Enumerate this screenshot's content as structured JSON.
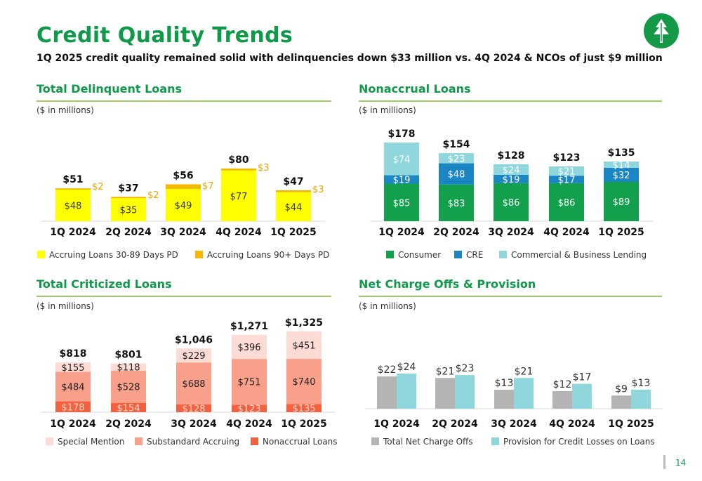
{
  "header": {
    "title": "Credit Quality Trends",
    "subtitle": "1Q 2025 credit quality remained solid with delinquencies down $33 million vs. 4Q 2024 & NCOs of just $9 million",
    "page_number": "14",
    "logo_icon": "tree-logo-icon"
  },
  "panels": {
    "delinquent": {
      "title": "Total Delinquent Loans",
      "units": "($ in millions)"
    },
    "nonaccrual": {
      "title": "Nonaccrual Loans",
      "units": "($ in millions)"
    },
    "criticized": {
      "title": "Total Criticized Loans",
      "units": "($ in millions)"
    },
    "nco": {
      "title": "Net Charge Offs & Provision",
      "units": "($ in millions)"
    }
  },
  "chart_data": [
    {
      "id": "delinquent",
      "type": "bar",
      "stacked": true,
      "categories": [
        "1Q 2024",
        "2Q 2024",
        "3Q 2024",
        "4Q 2024",
        "1Q 2025"
      ],
      "totals": [
        "$51",
        "$37",
        "$56",
        "$80",
        "$47"
      ],
      "ylim": [
        0,
        80
      ],
      "series": [
        {
          "name": "Accruing Loans 30-89 Days PD",
          "values": [
            48,
            35,
            49,
            77,
            44
          ],
          "labels": [
            "$48",
            "$35",
            "$49",
            "$77",
            "$44"
          ],
          "color": "#ffff00",
          "label_color": "#333333",
          "label_pos": "inside"
        },
        {
          "name": "Accruing Loans 90+ Days PD",
          "values": [
            2,
            2,
            7,
            3,
            3
          ],
          "labels": [
            "$2",
            "$2",
            "$7",
            "$3",
            "$3"
          ],
          "color": "#f5b800",
          "label_color": "#e6a700",
          "label_pos": "right"
        }
      ]
    },
    {
      "id": "nonaccrual",
      "type": "bar",
      "stacked": true,
      "categories": [
        "1Q 2024",
        "2Q 2024",
        "3Q 2024",
        "4Q 2024",
        "1Q 2025"
      ],
      "totals": [
        "$178",
        "$154",
        "$128",
        "$123",
        "$135"
      ],
      "ylim": [
        0,
        178
      ],
      "series": [
        {
          "name": "Consumer",
          "values": [
            85,
            83,
            86,
            86,
            89
          ],
          "labels": [
            "$85",
            "$83",
            "$86",
            "$86",
            "$89"
          ],
          "color": "#13a04c",
          "label_color": "#ffffff",
          "label_pos": "inside"
        },
        {
          "name": "CRE",
          "values": [
            19,
            48,
            19,
            17,
            32
          ],
          "labels": [
            "$19",
            "$48",
            "$19",
            "$17",
            "$32"
          ],
          "color": "#1a86c4",
          "label_color": "#ffffff",
          "label_pos": "inside"
        },
        {
          "name": "Commercial & Business Lending",
          "values": [
            74,
            23,
            24,
            21,
            14
          ],
          "labels": [
            "$74",
            "$23",
            "$24",
            "$21",
            "$14"
          ],
          "color": "#8fd6dd",
          "label_color": "#ffffff",
          "label_pos": "inside"
        }
      ]
    },
    {
      "id": "criticized",
      "type": "bar",
      "stacked": true,
      "categories": [
        "1Q 2024",
        "2Q 2024",
        "3Q 2024",
        "4Q 2024",
        "1Q 2025"
      ],
      "totals": [
        "$818",
        "$801",
        "$1,046",
        "$1,271",
        "$1,325"
      ],
      "ylim": [
        0,
        1325
      ],
      "series": [
        {
          "name": "Nonaccrual Loans",
          "values": [
            178,
            154,
            128,
            123,
            135
          ],
          "labels": [
            "$178",
            "$154",
            "$128",
            "$123",
            "$135"
          ],
          "color": "#f4613f",
          "label_color": "#ffd9cf",
          "label_pos": "inside"
        },
        {
          "name": "Substandard Accruing",
          "values": [
            484,
            528,
            688,
            751,
            740
          ],
          "labels": [
            "$484",
            "$528",
            "$688",
            "$751",
            "$740"
          ],
          "color": "#f9a08a",
          "label_color": "#222222",
          "label_pos": "inside"
        },
        {
          "name": "Special Mention",
          "values": [
            155,
            118,
            229,
            396,
            451
          ],
          "labels": [
            "$155",
            "$118",
            "$229",
            "$396",
            "$451"
          ],
          "color": "#fcdcd5",
          "label_color": "#222222",
          "label_pos": "inside"
        }
      ],
      "legend_order": [
        "Special Mention",
        "Substandard Accruing",
        "Nonaccrual Loans"
      ]
    },
    {
      "id": "nco",
      "type": "bar",
      "stacked": false,
      "categories": [
        "1Q 2024",
        "2Q 2024",
        "3Q 2024",
        "4Q 2024",
        "1Q 2025"
      ],
      "ylim": [
        0,
        24
      ],
      "series": [
        {
          "name": "Total Net Charge Offs",
          "values": [
            22,
            21,
            13,
            12,
            9
          ],
          "labels": [
            "$22",
            "$21",
            "$13",
            "$12",
            "$9"
          ],
          "color": "#b4b4b4",
          "label_color": "#333333"
        },
        {
          "name": "Provision for Credit Losses on Loans",
          "values": [
            24,
            23,
            21,
            17,
            13
          ],
          "labels": [
            "$24",
            "$23",
            "$21",
            "$17",
            "$13"
          ],
          "color": "#8fd6dd",
          "label_color": "#333333"
        }
      ]
    }
  ]
}
